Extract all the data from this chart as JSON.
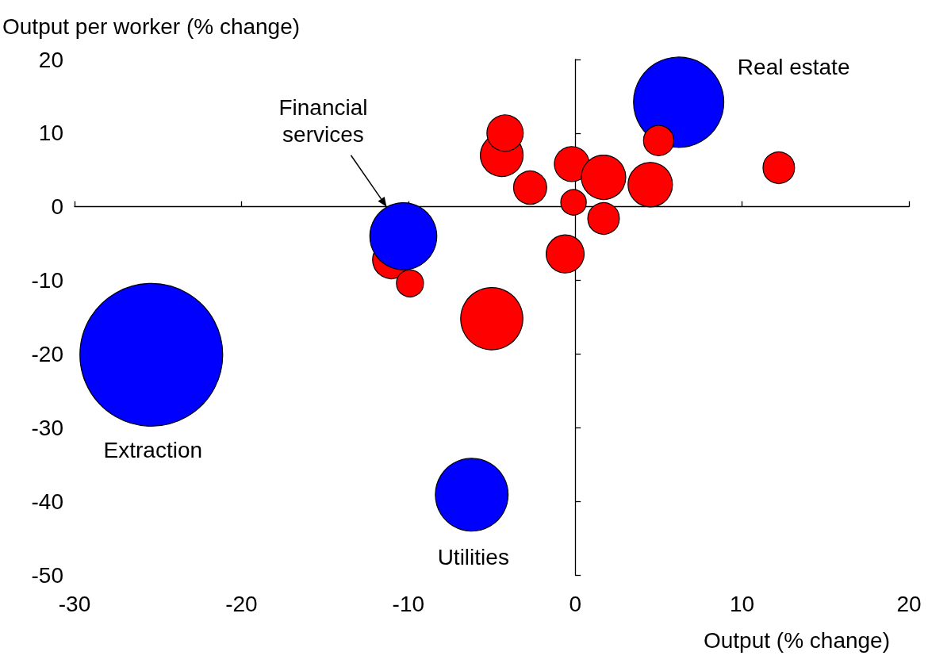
{
  "chart_data": {
    "type": "bubble",
    "xlabel": "Output (% change)",
    "ylabel": "Output per worker (% change)",
    "xlim": [
      -30,
      20
    ],
    "xticks": [
      -30,
      -20,
      -10,
      0,
      10,
      20
    ],
    "ylim": [
      -50,
      20
    ],
    "yticks": [
      -50,
      -40,
      -30,
      -20,
      -10,
      0,
      10,
      20
    ],
    "series": [
      {
        "x": [
          -25.4,
          -6.2,
          -11.0,
          -10.3,
          -9.9,
          -5.0,
          -4.4,
          -4.2,
          -2.7,
          -0.6,
          -0.2,
          -0.1,
          1.7,
          1.7,
          4.5,
          6.2,
          5.0,
          12.2
        ],
        "values": [
          -20.1,
          -39.1,
          -7.2,
          -4.0,
          -10.4,
          -15.2,
          7.0,
          10.0,
          2.6,
          -6.4,
          5.8,
          0.6,
          4.0,
          -1.6,
          3.0,
          14.2,
          9.0,
          5.3
        ],
        "sizes": [
          1,
          0.26,
          0.071,
          0.22,
          0.036,
          0.19,
          0.09,
          0.065,
          0.054,
          0.071,
          0.06,
          0.032,
          0.097,
          0.049,
          0.097,
          0.4,
          0.045,
          0.049
        ],
        "colors": [
          "#0000ff",
          "#0000ff",
          "#ff0000",
          "#0000ff",
          "#ff0000",
          "#ff0000",
          "#ff0000",
          "#ff0000",
          "#ff0000",
          "#ff0000",
          "#ff0000",
          "#ff0000",
          "#ff0000",
          "#ff0000",
          "#ff0000",
          "#0000ff",
          "#ff0000",
          "#ff0000"
        ]
      }
    ],
    "annotations": [
      "Real estate",
      {
        "text": "Financial\nservices",
        "x": -11.3,
        "y": 0
      },
      "Extraction",
      "Utilities"
    ]
  }
}
